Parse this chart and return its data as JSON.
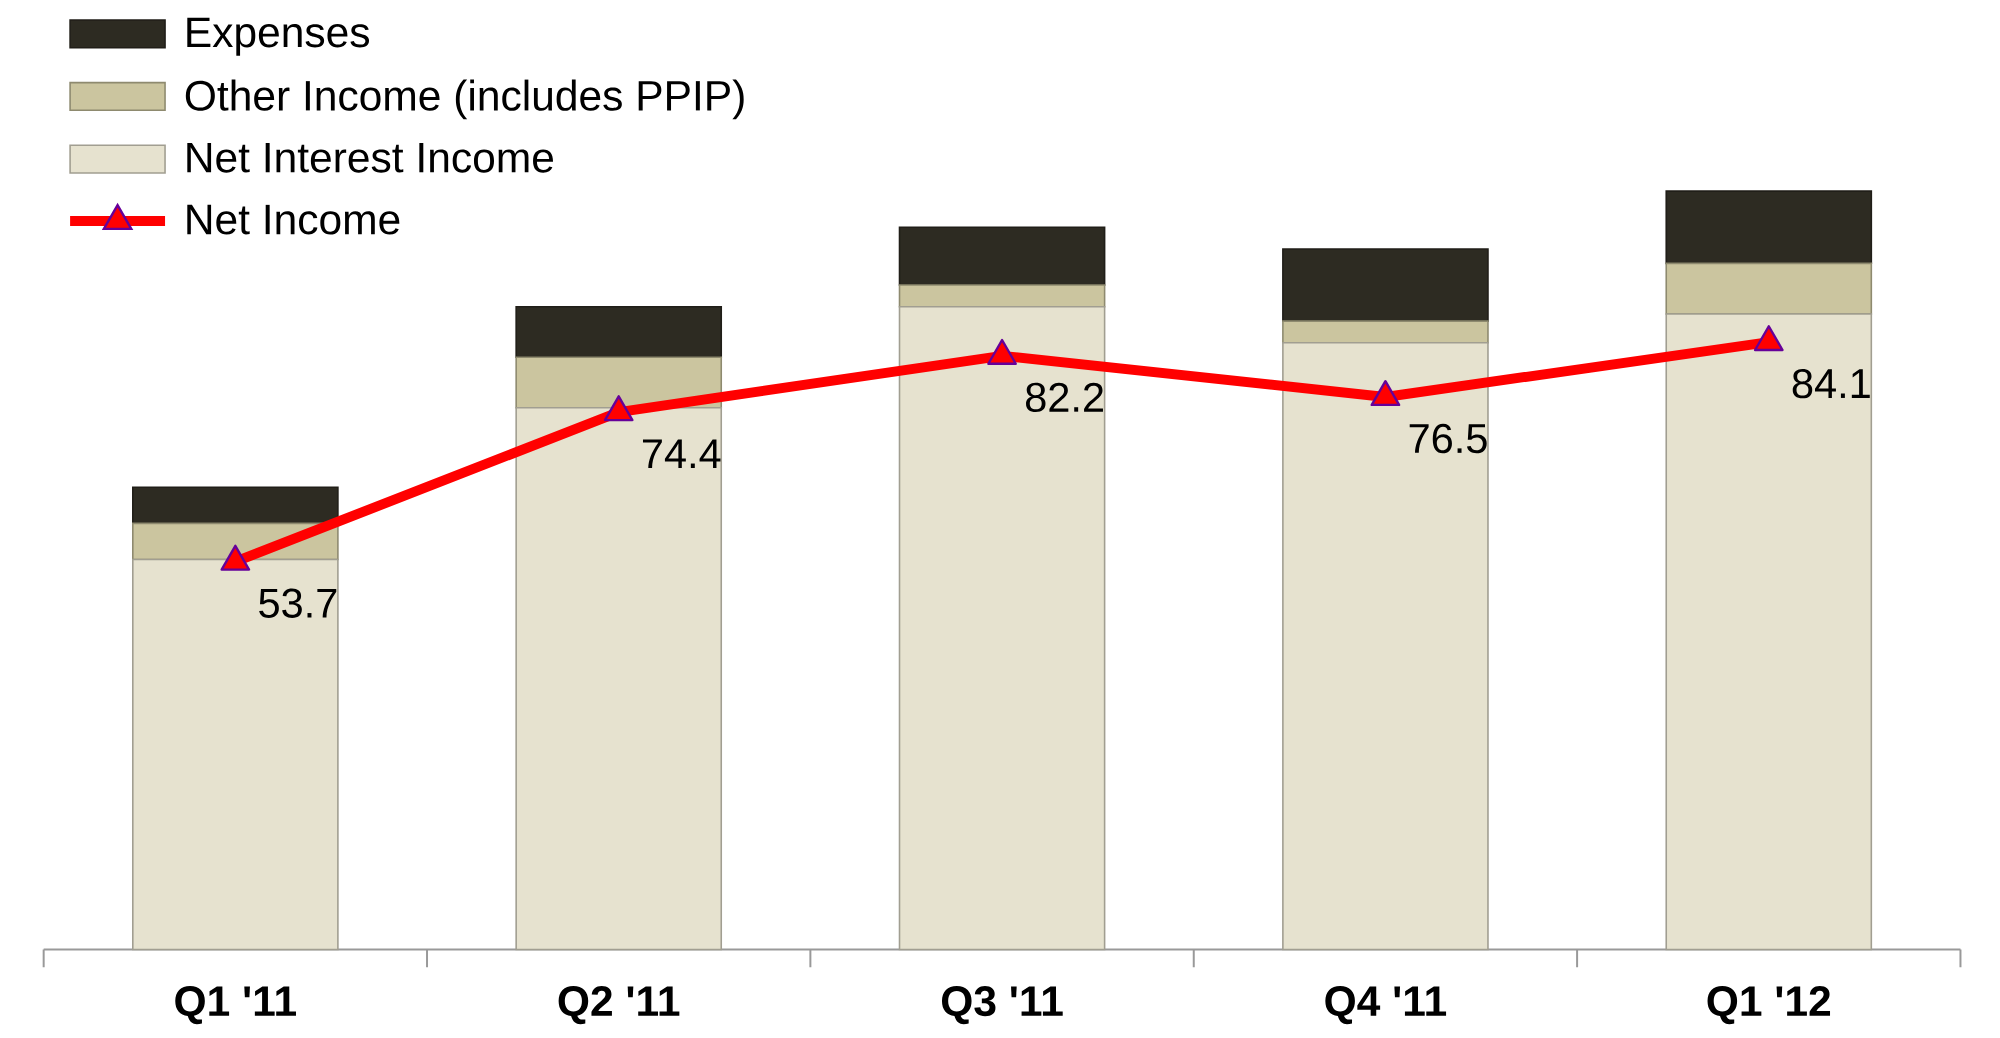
{
  "chart_data": {
    "type": "bar",
    "stacked": true,
    "categories": [
      "Q1 '11",
      "Q2 '11",
      "Q3 '11",
      "Q4 '11",
      "Q1 '12"
    ],
    "series": [
      {
        "name": "Net Interest Income",
        "color": "#e6e2cf",
        "values": [
          54,
          75,
          89,
          84,
          88
        ]
      },
      {
        "name": "Other Income (includes PPIP)",
        "color": "#cbc59f",
        "values": [
          5,
          7,
          3,
          3,
          7
        ]
      },
      {
        "name": "Expenses",
        "color": "#2d2b22",
        "values": [
          5,
          7,
          8,
          10,
          10
        ]
      },
      {
        "name": "Net Income",
        "type": "line",
        "color": "#ff0000",
        "marker": "triangle",
        "data_labels": true,
        "values": [
          53.7,
          74.4,
          82.2,
          76.5,
          84.1
        ]
      }
    ],
    "legend": "top left",
    "tick_labels": "x"
  }
}
